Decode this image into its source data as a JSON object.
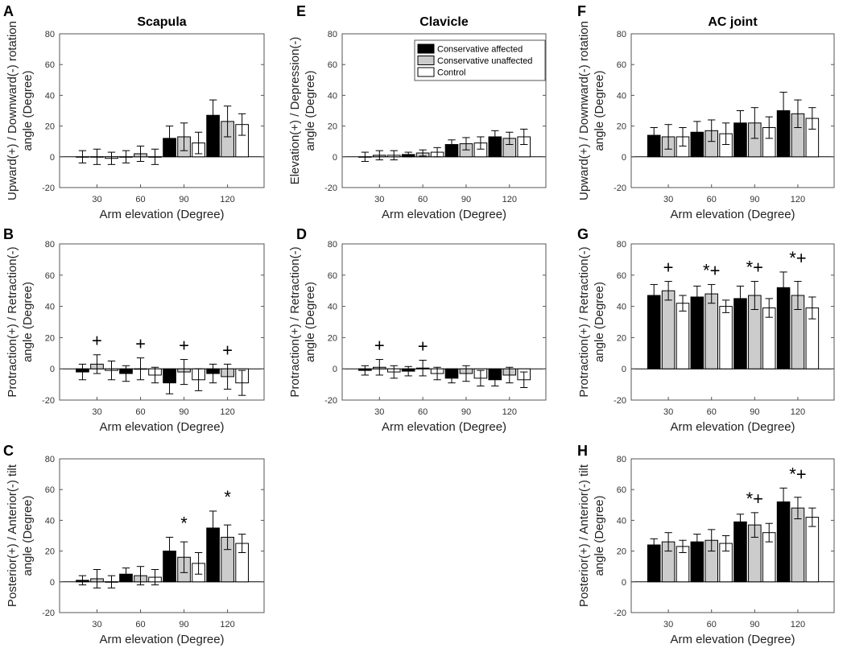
{
  "chart_data": [
    {
      "panel": "A",
      "type": "bar",
      "title": "Scapula",
      "xlabel": "Arm elevation (Degree)",
      "ylabel_lines": [
        "Upward(+) / Downward(-) rotation",
        "angle (Degree)"
      ],
      "ylim": [
        -20,
        80
      ],
      "yticks": [
        "-20",
        "0",
        "20",
        "40",
        "60",
        "80"
      ],
      "categories": [
        "30",
        "60",
        "90",
        "120"
      ],
      "series": [
        {
          "name": "Conservative affected",
          "values": [
            0,
            0,
            12,
            27
          ],
          "errors": [
            4,
            4,
            8,
            10
          ]
        },
        {
          "name": "Conservative unaffected",
          "values": [
            0,
            2,
            13,
            23
          ],
          "errors": [
            5,
            5,
            9,
            10
          ]
        },
        {
          "name": "Control",
          "values": [
            -1,
            0,
            9,
            21
          ],
          "errors": [
            4,
            5,
            7,
            7
          ]
        }
      ],
      "annotations": [
        "",
        "",
        "",
        ""
      ]
    },
    {
      "panel": "E",
      "type": "bar",
      "title": "Clavicle",
      "xlabel": "Arm elevation (Degree)",
      "ylabel_lines": [
        "Elevation(+) / Depression(-)",
        "angle (Degree)"
      ],
      "ylim": [
        -20,
        80
      ],
      "yticks": [
        "-20",
        "0",
        "20",
        "40",
        "60",
        "80"
      ],
      "categories": [
        "30",
        "60",
        "90",
        "120"
      ],
      "series": [
        {
          "name": "Conservative affected",
          "values": [
            0,
            1.5,
            8,
            13
          ],
          "errors": [
            3,
            1.5,
            3,
            4
          ]
        },
        {
          "name": "Conservative unaffected",
          "values": [
            1,
            2.5,
            8.5,
            12
          ],
          "errors": [
            3,
            2,
            4,
            4
          ]
        },
        {
          "name": "Control",
          "values": [
            1,
            3,
            9,
            13
          ],
          "errors": [
            3,
            3,
            4,
            5
          ]
        }
      ],
      "legend": {
        "entries": [
          "Conservative affected",
          "Conservative unaffected",
          "Control"
        ],
        "location": "top-right"
      },
      "annotations": [
        "",
        "",
        "",
        ""
      ]
    },
    {
      "panel": "F",
      "type": "bar",
      "title": "AC joint",
      "xlabel": "Arm elevation (Degree)",
      "ylabel_lines": [
        "Upward(+) / Downward(-) rotation",
        "angle (Degree)"
      ],
      "ylim": [
        -20,
        80
      ],
      "yticks": [
        "-20",
        "0",
        "20",
        "40",
        "60",
        "80"
      ],
      "categories": [
        "30",
        "60",
        "90",
        "120"
      ],
      "series": [
        {
          "name": "Conservative affected",
          "values": [
            14,
            16,
            22,
            30
          ],
          "errors": [
            5,
            7,
            8,
            12
          ]
        },
        {
          "name": "Conservative unaffected",
          "values": [
            13,
            17,
            22,
            28
          ],
          "errors": [
            8,
            7,
            10,
            9
          ]
        },
        {
          "name": "Control",
          "values": [
            13,
            15,
            19,
            25
          ],
          "errors": [
            6,
            7,
            7,
            7
          ]
        }
      ],
      "annotations": [
        "",
        "",
        "",
        ""
      ]
    },
    {
      "panel": "B",
      "type": "bar",
      "title": "",
      "xlabel": "Arm elevation (Degree)",
      "ylabel_lines": [
        "Protraction(+) / Retraction(-)",
        "angle (Degree)"
      ],
      "ylim": [
        -20,
        80
      ],
      "yticks": [
        "-20",
        "0",
        "20",
        "40",
        "60",
        "80"
      ],
      "categories": [
        "30",
        "60",
        "90",
        "120"
      ],
      "series": [
        {
          "name": "Conservative affected",
          "values": [
            -2,
            -3,
            -9,
            -3
          ],
          "errors": [
            5,
            5,
            7,
            6
          ]
        },
        {
          "name": "Conservative unaffected",
          "values": [
            3,
            0,
            -2,
            -5
          ],
          "errors": [
            6,
            7,
            8,
            8
          ]
        },
        {
          "name": "Control",
          "values": [
            -1,
            -4,
            -7,
            -9
          ],
          "errors": [
            6,
            5,
            7,
            8
          ]
        }
      ],
      "annotations": [
        "+",
        "+",
        "+",
        "+"
      ]
    },
    {
      "panel": "D",
      "type": "bar",
      "title": "",
      "xlabel": "Arm elevation (Degree)",
      "ylabel_lines": [
        "Protraction(+) / Retraction(-)",
        "angle (Degree)"
      ],
      "ylim": [
        -20,
        80
      ],
      "yticks": [
        "-20",
        "0",
        "20",
        "40",
        "60",
        "80"
      ],
      "categories": [
        "30",
        "60",
        "90",
        "120"
      ],
      "series": [
        {
          "name": "Conservative affected",
          "values": [
            -1,
            -1.5,
            -6,
            -7
          ],
          "errors": [
            3,
            3,
            3,
            4
          ]
        },
        {
          "name": "Conservative unaffected",
          "values": [
            1,
            0.5,
            -3,
            -4
          ],
          "errors": [
            5,
            5,
            5,
            5
          ]
        },
        {
          "name": "Control",
          "values": [
            -2,
            -3,
            -6,
            -7
          ],
          "errors": [
            4,
            4,
            5,
            5
          ]
        }
      ],
      "annotations": [
        "+",
        "+",
        "",
        ""
      ]
    },
    {
      "panel": "G",
      "type": "bar",
      "title": "",
      "xlabel": "Arm elevation (Degree)",
      "ylabel_lines": [
        "Protraction(+) / Retraction(-)",
        "angle (Degree)"
      ],
      "ylim": [
        -20,
        80
      ],
      "yticks": [
        "-20",
        "0",
        "20",
        "40",
        "60",
        "80"
      ],
      "categories": [
        "30",
        "60",
        "90",
        "120"
      ],
      "series": [
        {
          "name": "Conservative affected",
          "values": [
            47,
            46,
            45,
            52
          ],
          "errors": [
            7,
            7,
            8,
            10
          ]
        },
        {
          "name": "Conservative unaffected",
          "values": [
            50,
            48,
            47,
            47
          ],
          "errors": [
            6,
            6,
            9,
            9
          ]
        },
        {
          "name": "Control",
          "values": [
            42,
            40,
            39,
            39
          ],
          "errors": [
            5,
            4,
            6,
            7
          ]
        }
      ],
      "annotations": [
        "+",
        "*+",
        "*+",
        "*+"
      ]
    },
    {
      "panel": "C",
      "type": "bar",
      "title": "",
      "xlabel": "Arm elevation (Degree)",
      "ylabel_lines": [
        "Posterior(+) / Anterior(-) tilt",
        "angle (Degree)"
      ],
      "ylim": [
        -20,
        80
      ],
      "yticks": [
        "-20",
        "0",
        "20",
        "40",
        "60",
        "80"
      ],
      "categories": [
        "30",
        "60",
        "90",
        "120"
      ],
      "series": [
        {
          "name": "Conservative affected",
          "values": [
            1,
            5,
            20,
            35
          ],
          "errors": [
            3,
            4,
            9,
            11
          ]
        },
        {
          "name": "Conservative unaffected",
          "values": [
            2,
            4,
            16,
            29
          ],
          "errors": [
            6,
            6,
            10,
            8
          ]
        },
        {
          "name": "Control",
          "values": [
            0,
            3,
            12,
            25
          ],
          "errors": [
            4,
            5,
            7,
            6
          ]
        }
      ],
      "annotations": [
        "",
        "",
        "*",
        "*"
      ]
    },
    {
      "panel": "H",
      "type": "bar",
      "title": "",
      "xlabel": "Arm elevation (Degree)",
      "ylabel_lines": [
        "Posterior(+) / Anterior(-) tilt",
        "angle (Degree)"
      ],
      "ylim": [
        -20,
        80
      ],
      "yticks": [
        "-20",
        "0",
        "20",
        "40",
        "60",
        "80"
      ],
      "categories": [
        "30",
        "60",
        "90",
        "120"
      ],
      "series": [
        {
          "name": "Conservative affected",
          "values": [
            24,
            26,
            39,
            52
          ],
          "errors": [
            4,
            5,
            5,
            9
          ]
        },
        {
          "name": "Conservative unaffected",
          "values": [
            26,
            27,
            37,
            48
          ],
          "errors": [
            6,
            7,
            8,
            7
          ]
        },
        {
          "name": "Control",
          "values": [
            23,
            25,
            32,
            42
          ],
          "errors": [
            4,
            5,
            6,
            6
          ]
        }
      ],
      "annotations": [
        "",
        "",
        "*+",
        "*+"
      ]
    }
  ],
  "colors": {
    "affected": "#000000",
    "unaffected": "#cccccc",
    "control": "#ffffff",
    "axis": "#555555",
    "tick_text": "#333333"
  }
}
